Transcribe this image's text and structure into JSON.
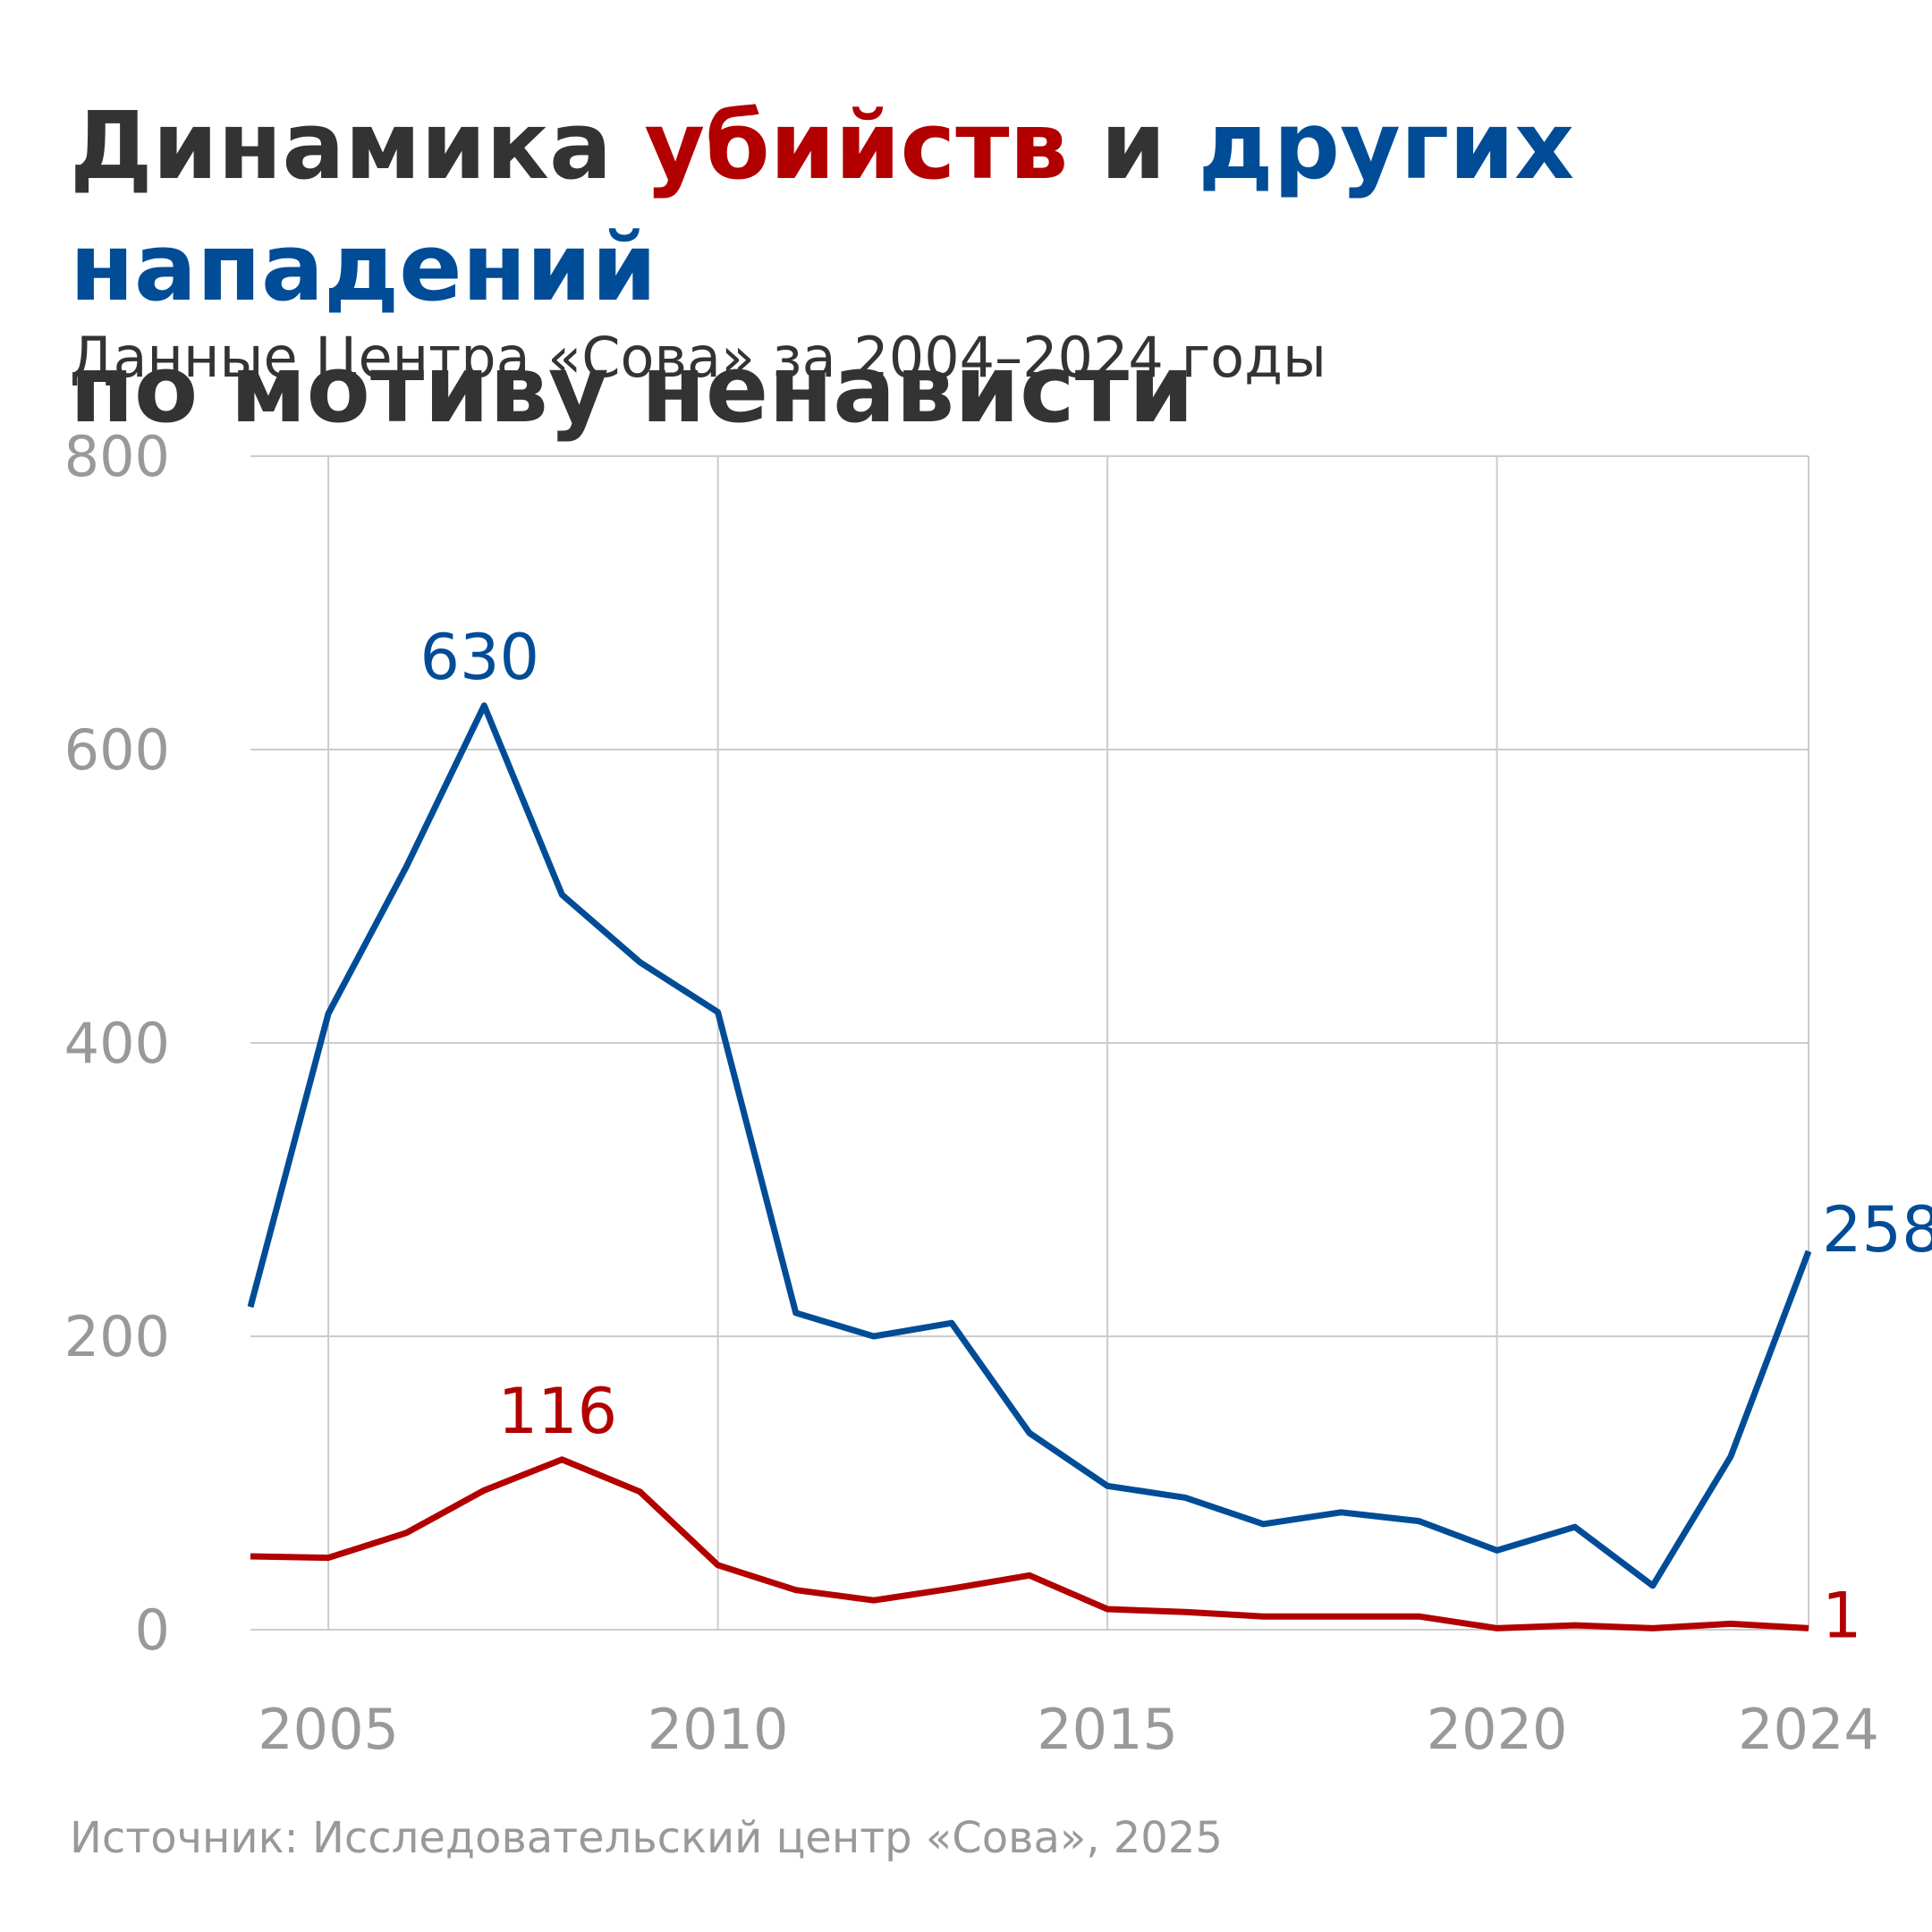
{
  "header": {
    "title_part1": "Динамика ",
    "title_killings": "убийств",
    "title_and": " и ",
    "title_attacks": "других нападений",
    "title_line2": "по мотиву ненависти",
    "subtitle": "Данные Центра «Сова» за 2004–2024 годы"
  },
  "footer": {
    "source": "Источник: Исследовательский центр «Сова», 2025"
  },
  "colors": {
    "killings": "#b20000",
    "attacks": "#004c97",
    "grid": "#cccccc",
    "ticks": "#999999",
    "text": "#333333"
  },
  "chart_data": {
    "type": "line",
    "title": "Динамика убийств и других нападений по мотиву ненависти",
    "subtitle": "Данные Центра «Сова» за 2004–2024 годы",
    "x": [
      2004,
      2005,
      2006,
      2007,
      2008,
      2009,
      2010,
      2011,
      2012,
      2013,
      2014,
      2015,
      2016,
      2017,
      2018,
      2019,
      2020,
      2021,
      2022,
      2023,
      2024
    ],
    "xlim": [
      2004,
      2024
    ],
    "ylim": [
      0,
      800
    ],
    "x_ticks": [
      2005,
      2010,
      2015,
      2020,
      2024
    ],
    "y_ticks": [
      0,
      200,
      400,
      600,
      800
    ],
    "grid": true,
    "series": [
      {
        "name": "других нападений",
        "color": "#004c97",
        "values": [
          220,
          420,
          520,
          630,
          501,
          455,
          421,
          216,
          200,
          209,
          134,
          98,
          90,
          72,
          80,
          74,
          54,
          70,
          30,
          118,
          258
        ]
      },
      {
        "name": "убийств",
        "color": "#b20000",
        "values": [
          50,
          49,
          66,
          95,
          116,
          94,
          44,
          27,
          20,
          28,
          37,
          14,
          12,
          9,
          9,
          9,
          1,
          3,
          1,
          4,
          1
        ]
      }
    ],
    "annotations": [
      {
        "series": 0,
        "x": 2007,
        "value": 630,
        "text": "630"
      },
      {
        "series": 0,
        "x": 2024,
        "value": 258,
        "text": "258"
      },
      {
        "series": 1,
        "x": 2008,
        "value": 116,
        "text": "116"
      },
      {
        "series": 1,
        "x": 2024,
        "value": 1,
        "text": "1"
      }
    ]
  }
}
